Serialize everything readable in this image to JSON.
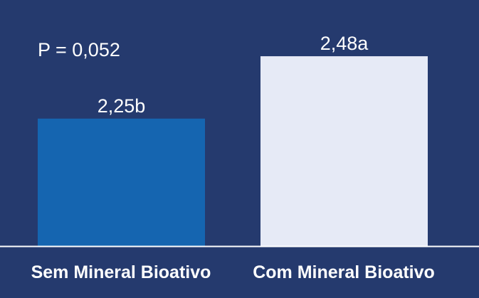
{
  "chart_data": {
    "type": "bar",
    "annotation": "P = 0,052",
    "categories": [
      "Sem Mineral Bioativo",
      "Com Mineral Bioativo"
    ],
    "values": [
      2.25,
      2.48
    ],
    "data_labels": [
      "2,25b",
      "2,48a"
    ],
    "bar_colors": [
      "#1565b0",
      "#e6eaf6"
    ],
    "background_color": "#253a6e",
    "baseline_color": "#ffffff",
    "ylim": [
      1.78,
      2.53
    ],
    "grid": false,
    "legend": "none"
  }
}
